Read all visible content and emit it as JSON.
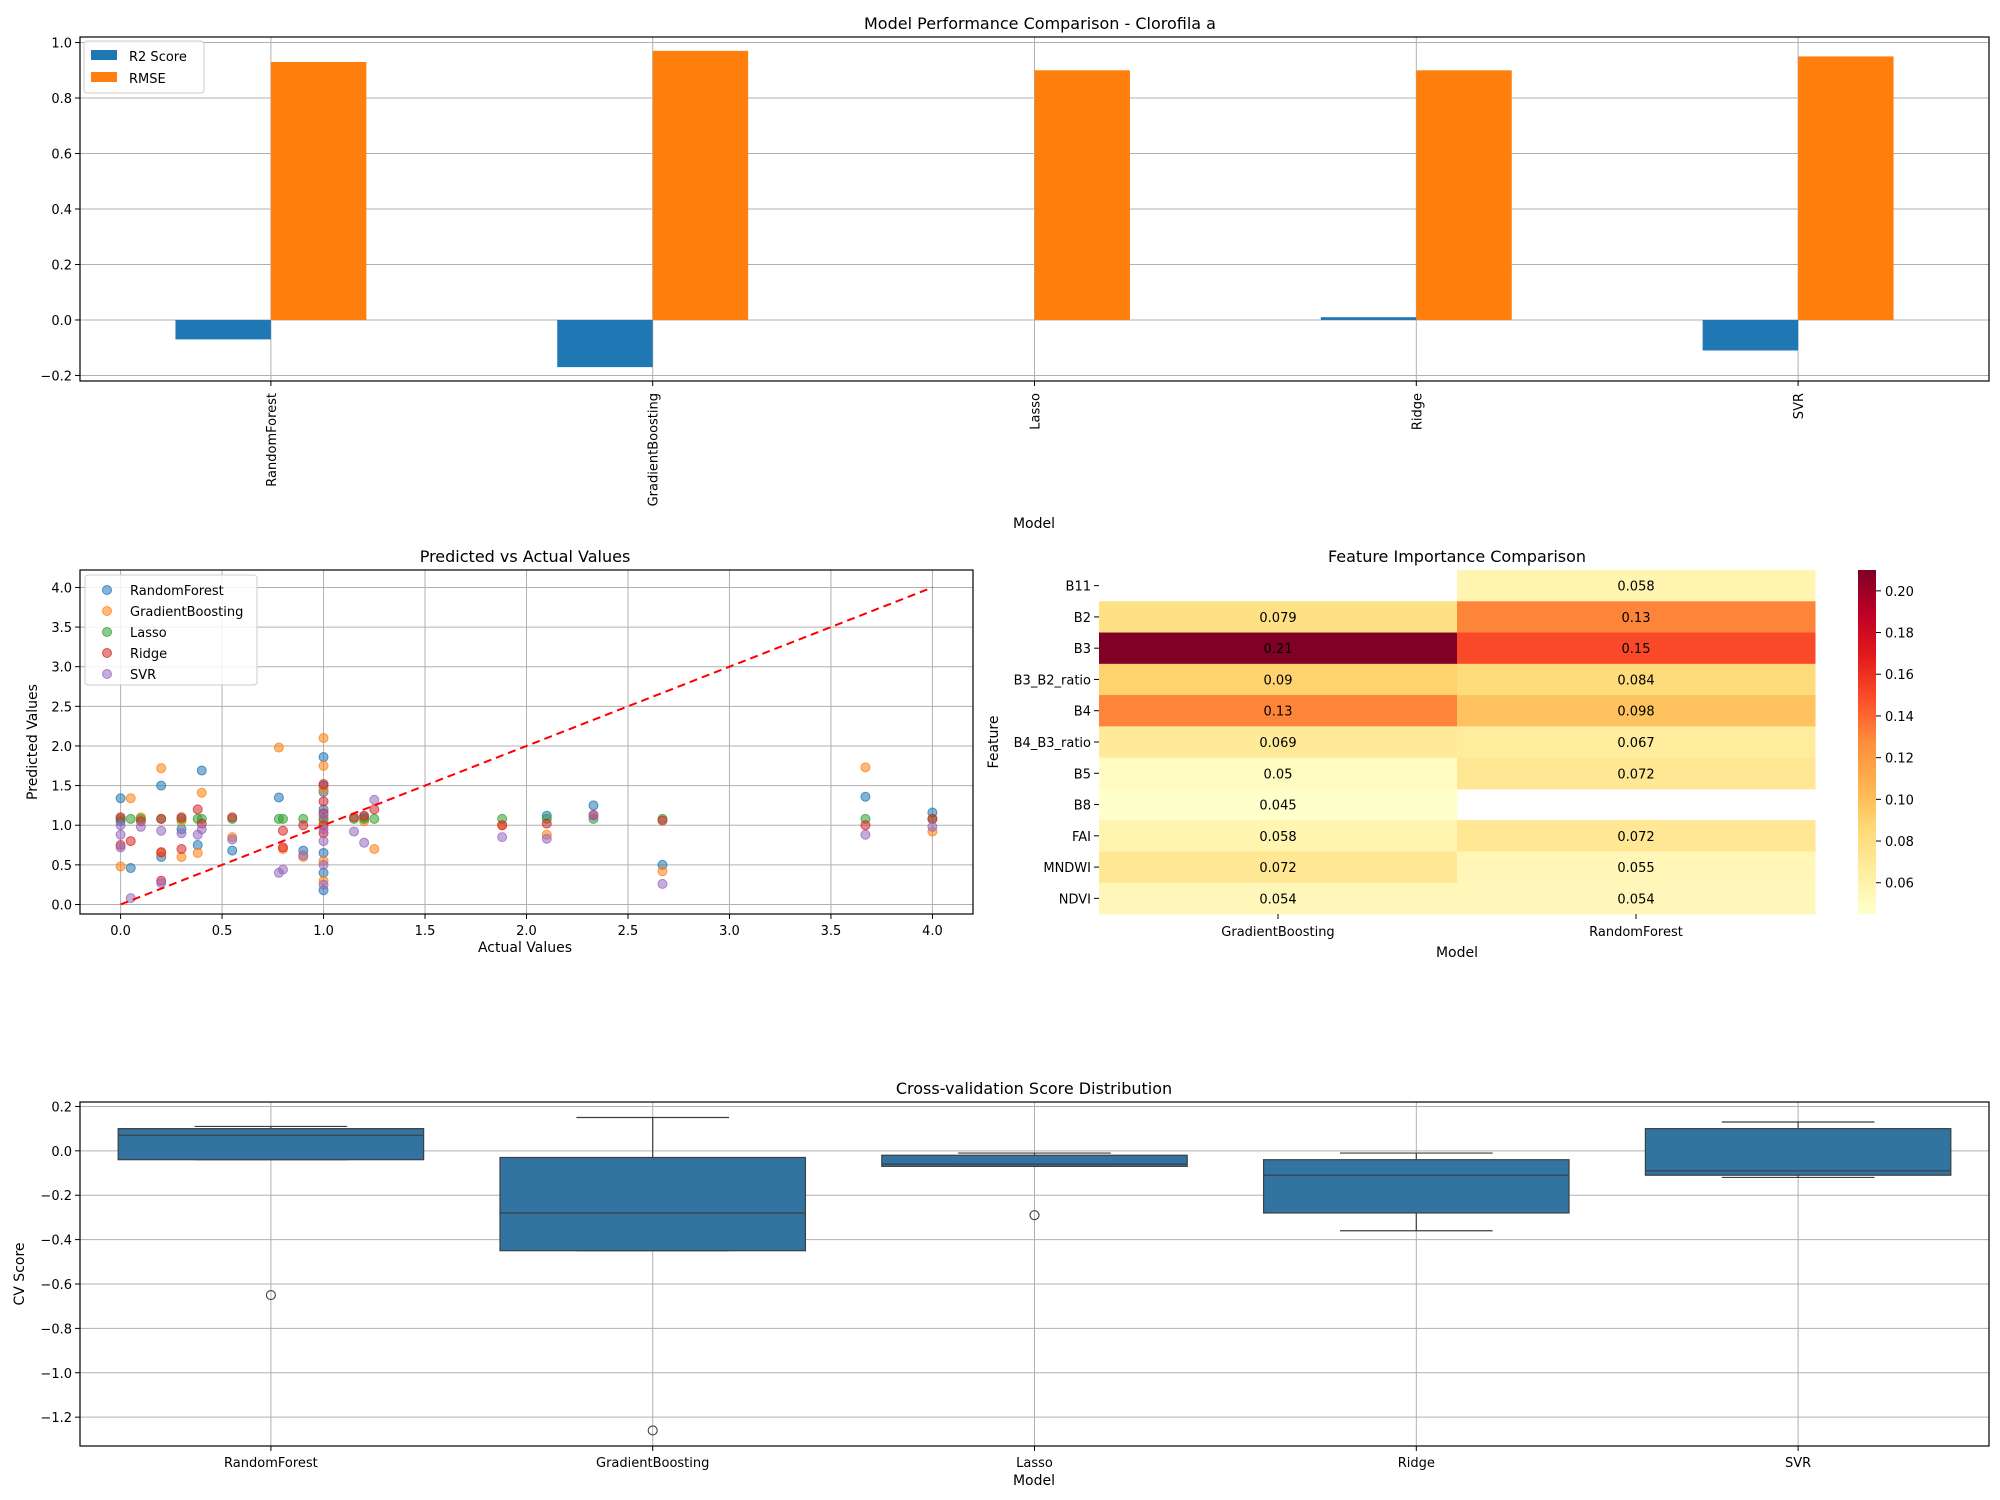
{
  "chart_data": [
    {
      "type": "bar",
      "title": "Model Performance Comparison - Clorofila a",
      "xlabel": "Model",
      "ylabel": "",
      "categories": [
        "RandomForest",
        "GradientBoosting",
        "Lasso",
        "Ridge",
        "SVR"
      ],
      "series": [
        {
          "name": "R2 Score",
          "color": "#1f77b4",
          "values": [
            -0.07,
            -0.17,
            0.0,
            0.01,
            -0.11
          ]
        },
        {
          "name": "RMSE",
          "color": "#ff7f0e",
          "values": [
            0.93,
            0.97,
            0.9,
            0.9,
            0.95
          ]
        }
      ],
      "ylim": [
        -0.22,
        1.02
      ],
      "yticks": [
        "−0.2",
        "0.0",
        "0.2",
        "0.4",
        "0.6",
        "0.8",
        "1.0"
      ],
      "grid": true,
      "legend": "upper-left"
    },
    {
      "type": "scatter",
      "title": "Predicted vs Actual Values",
      "xlabel": "Actual Values",
      "ylabel": "Predicted Values",
      "xlim": [
        -0.2,
        4.2
      ],
      "ylim": [
        -0.12,
        4.22
      ],
      "xticks": [
        "0.0",
        "0.5",
        "1.0",
        "1.5",
        "2.0",
        "2.5",
        "3.0",
        "3.5",
        "4.0"
      ],
      "yticks": [
        "0.0",
        "0.5",
        "1.0",
        "1.5",
        "2.0",
        "2.5",
        "3.0",
        "3.5",
        "4.0"
      ],
      "grid": true,
      "legend": "upper-left",
      "reference_line": {
        "from": [
          0,
          0
        ],
        "to": [
          4,
          4
        ],
        "color": "#ff0000",
        "style": "dashed"
      },
      "series": [
        {
          "name": "RandomForest",
          "color": "#1f77b4",
          "points": [
            [
              0.0,
              1.34
            ],
            [
              0.05,
              0.46
            ],
            [
              0.2,
              1.5
            ],
            [
              0.2,
              0.6
            ],
            [
              0.4,
              1.69
            ],
            [
              0.38,
              0.75
            ],
            [
              0.3,
              0.95
            ],
            [
              0.55,
              0.68
            ],
            [
              0.78,
              1.35
            ],
            [
              0.9,
              0.68
            ],
            [
              1.0,
              1.86
            ],
            [
              1.0,
              1.5
            ],
            [
              1.0,
              1.2
            ],
            [
              1.0,
              0.65
            ],
            [
              1.0,
              0.4
            ],
            [
              1.0,
              0.18
            ],
            [
              1.2,
              1.1
            ],
            [
              2.1,
              1.12
            ],
            [
              2.33,
              1.25
            ],
            [
              2.67,
              0.5
            ],
            [
              3.67,
              1.36
            ],
            [
              4.0,
              1.16
            ],
            [
              0.0,
              1.05
            ],
            [
              1.0,
              1.42
            ]
          ]
        },
        {
          "name": "GradientBoosting",
          "color": "#ff7f0e",
          "points": [
            [
              0.0,
              0.48
            ],
            [
              0.05,
              1.34
            ],
            [
              0.1,
              1.1
            ],
            [
              0.2,
              1.72
            ],
            [
              0.2,
              0.65
            ],
            [
              0.3,
              0.6
            ],
            [
              0.3,
              1.05
            ],
            [
              0.4,
              1.41
            ],
            [
              0.38,
              0.65
            ],
            [
              0.55,
              0.85
            ],
            [
              0.78,
              1.98
            ],
            [
              0.8,
              0.7
            ],
            [
              0.9,
              0.6
            ],
            [
              1.0,
              2.1
            ],
            [
              1.0,
              1.75
            ],
            [
              1.0,
              1.45
            ],
            [
              1.0,
              1.05
            ],
            [
              1.0,
              0.55
            ],
            [
              1.0,
              0.3
            ],
            [
              1.2,
              1.05
            ],
            [
              1.25,
              0.7
            ],
            [
              1.88,
              1.0
            ],
            [
              2.1,
              0.88
            ],
            [
              2.67,
              0.42
            ],
            [
              3.67,
              1.73
            ],
            [
              4.0,
              0.92
            ]
          ]
        },
        {
          "name": "Lasso",
          "color": "#2ca02c",
          "points": [
            [
              0.0,
              1.08
            ],
            [
              0.05,
              1.08
            ],
            [
              0.1,
              1.08
            ],
            [
              0.2,
              1.08
            ],
            [
              0.3,
              1.08
            ],
            [
              0.38,
              1.08
            ],
            [
              0.4,
              1.08
            ],
            [
              0.55,
              1.08
            ],
            [
              0.78,
              1.08
            ],
            [
              0.8,
              1.08
            ],
            [
              0.9,
              1.08
            ],
            [
              1.0,
              1.08
            ],
            [
              1.15,
              1.08
            ],
            [
              1.2,
              1.08
            ],
            [
              1.25,
              1.08
            ],
            [
              1.88,
              1.08
            ],
            [
              2.1,
              1.08
            ],
            [
              2.33,
              1.08
            ],
            [
              2.67,
              1.08
            ],
            [
              3.67,
              1.08
            ],
            [
              4.0,
              1.08
            ]
          ]
        },
        {
          "name": "Ridge",
          "color": "#d62728",
          "points": [
            [
              0.0,
              1.1
            ],
            [
              0.0,
              0.75
            ],
            [
              0.05,
              0.8
            ],
            [
              0.1,
              1.05
            ],
            [
              0.2,
              1.08
            ],
            [
              0.2,
              0.66
            ],
            [
              0.2,
              0.3
            ],
            [
              0.3,
              1.1
            ],
            [
              0.3,
              0.7
            ],
            [
              0.38,
              1.2
            ],
            [
              0.4,
              1.02
            ],
            [
              0.55,
              1.1
            ],
            [
              0.8,
              0.72
            ],
            [
              0.8,
              0.93
            ],
            [
              0.9,
              1.0
            ],
            [
              1.0,
              1.52
            ],
            [
              1.0,
              1.3
            ],
            [
              1.0,
              1.15
            ],
            [
              1.0,
              1.0
            ],
            [
              1.0,
              0.9
            ],
            [
              1.15,
              1.1
            ],
            [
              1.2,
              1.12
            ],
            [
              1.25,
              1.2
            ],
            [
              1.88,
              1.0
            ],
            [
              2.1,
              1.02
            ],
            [
              2.33,
              1.13
            ],
            [
              2.67,
              1.06
            ],
            [
              3.67,
              1.0
            ],
            [
              4.0,
              1.08
            ]
          ]
        },
        {
          "name": "SVR",
          "color": "#9467bd",
          "points": [
            [
              0.0,
              0.88
            ],
            [
              0.0,
              0.72
            ],
            [
              0.0,
              1.0
            ],
            [
              0.05,
              0.08
            ],
            [
              0.1,
              0.98
            ],
            [
              0.2,
              0.93
            ],
            [
              0.2,
              0.27
            ],
            [
              0.3,
              0.9
            ],
            [
              0.38,
              0.88
            ],
            [
              0.4,
              0.95
            ],
            [
              0.55,
              0.82
            ],
            [
              0.78,
              0.4
            ],
            [
              0.8,
              0.44
            ],
            [
              0.9,
              0.62
            ],
            [
              1.0,
              1.12
            ],
            [
              1.0,
              0.95
            ],
            [
              1.0,
              0.8
            ],
            [
              1.0,
              0.5
            ],
            [
              1.0,
              0.25
            ],
            [
              1.15,
              0.92
            ],
            [
              1.2,
              0.78
            ],
            [
              1.25,
              1.32
            ],
            [
              1.88,
              0.85
            ],
            [
              2.1,
              0.83
            ],
            [
              2.33,
              1.12
            ],
            [
              2.67,
              0.26
            ],
            [
              3.67,
              0.88
            ],
            [
              4.0,
              0.98
            ]
          ]
        }
      ]
    },
    {
      "type": "heatmap",
      "title": "Feature Importance Comparison",
      "xlabel": "Model",
      "ylabel": "Feature",
      "columns": [
        "GradientBoosting",
        "RandomForest"
      ],
      "rows": [
        "B11",
        "B2",
        "B3",
        "B3_B2_ratio",
        "B4",
        "B4_B3_ratio",
        "B5",
        "B8",
        "FAI",
        "MNDWI",
        "NDVI"
      ],
      "values": [
        [
          null,
          0.058
        ],
        [
          0.079,
          0.13
        ],
        [
          0.21,
          0.15
        ],
        [
          0.09,
          0.084
        ],
        [
          0.13,
          0.098
        ],
        [
          0.069,
          0.067
        ],
        [
          0.05,
          0.072
        ],
        [
          0.045,
          null
        ],
        [
          0.058,
          0.072
        ],
        [
          0.072,
          0.055
        ],
        [
          0.054,
          0.054
        ]
      ],
      "labels": [
        [
          "",
          "0.058"
        ],
        [
          "0.079",
          "0.13"
        ],
        [
          "0.21",
          "0.15"
        ],
        [
          "0.09",
          "0.084"
        ],
        [
          "0.13",
          "0.098"
        ],
        [
          "0.069",
          "0.067"
        ],
        [
          "0.05",
          "0.072"
        ],
        [
          "0.045",
          ""
        ],
        [
          "0.058",
          "0.072"
        ],
        [
          "0.072",
          "0.055"
        ],
        [
          "0.054",
          "0.054"
        ]
      ],
      "vmin": 0.045,
      "vmax": 0.21,
      "colormap": "YlOrRd",
      "colorbar_ticks": [
        0.06,
        0.08,
        0.1,
        0.12,
        0.14,
        0.16,
        0.18,
        0.2
      ],
      "colorbar_tick_labels": [
        "0.06",
        "0.08",
        "0.10",
        "0.12",
        "0.14",
        "0.16",
        "0.18",
        "0.20"
      ]
    },
    {
      "type": "box",
      "title": "Cross-validation Score Distribution",
      "xlabel": "Model",
      "ylabel": "CV Score",
      "categories": [
        "RandomForest",
        "GradientBoosting",
        "Lasso",
        "Ridge",
        "SVR"
      ],
      "color": "#3274a1",
      "boxes": [
        {
          "q1": -0.04,
          "median": 0.07,
          "q3": 0.1,
          "whisker_low": -0.04,
          "whisker_high": 0.11,
          "outliers": [
            -0.65
          ]
        },
        {
          "q1": -0.45,
          "median": -0.28,
          "q3": -0.03,
          "whisker_low": -0.45,
          "whisker_high": 0.15,
          "outliers": [
            -1.26
          ]
        },
        {
          "q1": -0.07,
          "median": -0.06,
          "q3": -0.02,
          "whisker_low": -0.07,
          "whisker_high": -0.01,
          "outliers": [
            -0.29
          ]
        },
        {
          "q1": -0.28,
          "median": -0.11,
          "q3": -0.04,
          "whisker_low": -0.36,
          "whisker_high": -0.01,
          "outliers": []
        },
        {
          "q1": -0.11,
          "median": -0.09,
          "q3": 0.1,
          "whisker_low": -0.12,
          "whisker_high": 0.13,
          "outliers": []
        }
      ],
      "ylim": [
        -1.33,
        0.22
      ],
      "yticks": [
        "−1.2",
        "−1.0",
        "−0.8",
        "−0.6",
        "−0.4",
        "−0.2",
        "0.0",
        "0.2"
      ],
      "grid": true
    }
  ]
}
